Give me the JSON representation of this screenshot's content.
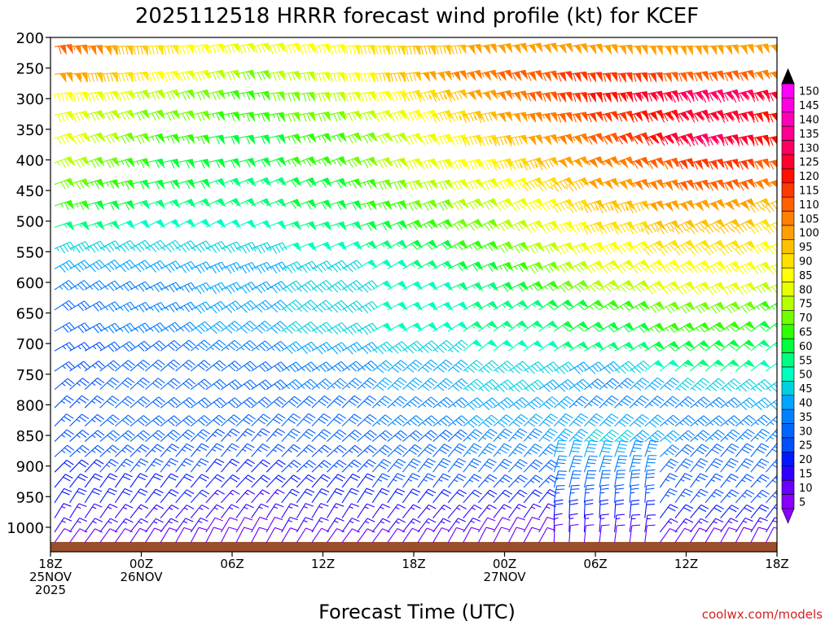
{
  "chart_data": {
    "type": "wind-barb-profile",
    "title": "2025112518 HRRR forecast wind profile (kt) for KCEF",
    "xlabel": "Forecast Time (UTC)",
    "ylabel": "",
    "x_range_hours": [
      0,
      48
    ],
    "x_ticks": [
      {
        "hour": 0,
        "label": "18Z",
        "label2": "25NOV",
        "label3": "2025"
      },
      {
        "hour": 6,
        "label": "00Z",
        "label2": "26NOV",
        "label3": ""
      },
      {
        "hour": 12,
        "label": "06Z",
        "label2": "",
        "label3": ""
      },
      {
        "hour": 18,
        "label": "12Z",
        "label2": "",
        "label3": ""
      },
      {
        "hour": 24,
        "label": "18Z",
        "label2": "",
        "label3": ""
      },
      {
        "hour": 30,
        "label": "00Z",
        "label2": "27NOV",
        "label3": ""
      },
      {
        "hour": 36,
        "label": "06Z",
        "label2": "",
        "label3": ""
      },
      {
        "hour": 42,
        "label": "12Z",
        "label2": "",
        "label3": ""
      },
      {
        "hour": 48,
        "label": "18Z",
        "label2": "",
        "label3": ""
      }
    ],
    "y_ticks": [
      200,
      250,
      300,
      350,
      400,
      450,
      500,
      550,
      600,
      650,
      700,
      750,
      800,
      850,
      900,
      950,
      1000
    ],
    "y_range_hpa": [
      200,
      1040
    ],
    "levels_hpa": [
      215,
      260,
      293,
      327,
      365,
      405,
      440,
      475,
      510,
      545,
      578,
      612,
      645,
      680,
      712,
      745,
      775,
      805,
      835,
      860,
      885,
      910,
      935,
      960,
      985,
      1008,
      1025
    ],
    "surface_pressure_hpa": 1024,
    "surface_color": "#9a4f2a",
    "colorbar": {
      "values": [
        5,
        10,
        15,
        20,
        25,
        30,
        35,
        40,
        45,
        50,
        55,
        60,
        65,
        70,
        75,
        80,
        85,
        90,
        95,
        100,
        105,
        110,
        115,
        120,
        125,
        130,
        135,
        140,
        145,
        150
      ],
      "colors": [
        "#8800ff",
        "#6a00ff",
        "#3000ff",
        "#0018ff",
        "#0050ff",
        "#0066ff",
        "#0082ff",
        "#00a6ff",
        "#00d0e0",
        "#00ffc0",
        "#00ff80",
        "#00ff3c",
        "#30ff00",
        "#70ff00",
        "#b8ff00",
        "#e8ff00",
        "#ffff00",
        "#ffe000",
        "#ffc000",
        "#ffa000",
        "#ff8000",
        "#ff6000",
        "#ff3800",
        "#ff1000",
        "#ff0030",
        "#ff0060",
        "#ff0090",
        "#ff00b8",
        "#ff00e0",
        "#ff00ff"
      ],
      "extends": "both"
    },
    "speed_model_kt": {
      "description": "Approximate wind speeds by level (rows) at forecast hours 0,6,12,18,24,30,36,42,48",
      "hours": [
        0,
        6,
        12,
        18,
        24,
        30,
        36,
        42,
        48
      ],
      "rows": [
        [
          110,
          90,
          80,
          85,
          95,
          100,
          100,
          100,
          100
        ],
        [
          100,
          85,
          70,
          80,
          100,
          110,
          115,
          110,
          105
        ],
        [
          85,
          75,
          65,
          75,
          90,
          105,
          120,
          130,
          125
        ],
        [
          80,
          70,
          65,
          70,
          85,
          100,
          115,
          125,
          120
        ],
        [
          80,
          65,
          60,
          65,
          80,
          95,
          110,
          130,
          115
        ],
        [
          75,
          60,
          60,
          65,
          80,
          90,
          105,
          115,
          110
        ],
        [
          70,
          60,
          55,
          60,
          75,
          85,
          100,
          110,
          105
        ],
        [
          65,
          55,
          55,
          60,
          70,
          80,
          95,
          100,
          95
        ],
        [
          55,
          50,
          50,
          55,
          65,
          75,
          90,
          95,
          90
        ],
        [
          45,
          45,
          45,
          50,
          60,
          70,
          85,
          90,
          85
        ],
        [
          40,
          40,
          40,
          45,
          55,
          65,
          80,
          85,
          80
        ],
        [
          35,
          35,
          40,
          45,
          50,
          60,
          75,
          80,
          75
        ],
        [
          30,
          35,
          40,
          45,
          50,
          55,
          65,
          70,
          65
        ],
        [
          30,
          35,
          40,
          45,
          50,
          55,
          60,
          65,
          60
        ],
        [
          25,
          30,
          35,
          40,
          45,
          50,
          55,
          60,
          55
        ],
        [
          25,
          30,
          30,
          35,
          40,
          45,
          40,
          55,
          50
        ],
        [
          25,
          30,
          30,
          35,
          40,
          45,
          35,
          45,
          45
        ],
        [
          25,
          30,
          30,
          30,
          35,
          40,
          35,
          35,
          40
        ],
        [
          25,
          30,
          30,
          30,
          35,
          40,
          40,
          35,
          35
        ],
        [
          25,
          30,
          25,
          30,
          30,
          35,
          45,
          35,
          35
        ],
        [
          25,
          25,
          25,
          25,
          30,
          35,
          40,
          30,
          30
        ],
        [
          20,
          25,
          20,
          25,
          30,
          30,
          35,
          30,
          30
        ],
        [
          20,
          20,
          20,
          20,
          25,
          25,
          30,
          25,
          25
        ],
        [
          20,
          20,
          15,
          20,
          20,
          20,
          25,
          25,
          25
        ],
        [
          15,
          15,
          15,
          15,
          15,
          15,
          20,
          20,
          20
        ],
        [
          15,
          15,
          10,
          15,
          15,
          10,
          15,
          15,
          15
        ],
        [
          10,
          10,
          10,
          10,
          10,
          10,
          10,
          10,
          10
        ]
      ]
    }
  },
  "credit": "coolwx.com/models"
}
